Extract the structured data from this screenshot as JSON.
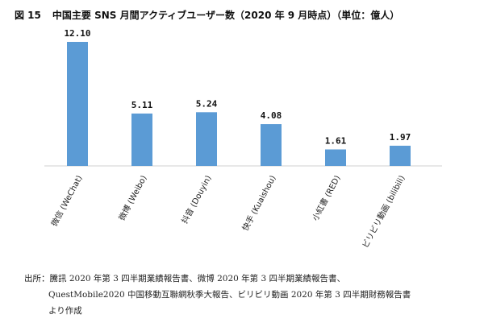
{
  "figure": {
    "number": "図 15",
    "title": "中国主要 SNS 月間アクティブユーザー数（2020 年 9 月時点）（単位：億人）"
  },
  "chart_data": {
    "type": "bar",
    "categories": [
      "微信 (WeChat)",
      "微博 (Weibo)",
      "抖音 (Douyin)",
      "快手 (Kuaishou)",
      "小紅書 (RED)",
      "ビリビリ動画 (bilibili)"
    ],
    "values": [
      12.1,
      5.11,
      5.24,
      4.08,
      1.61,
      1.97
    ],
    "data_labels": [
      "12.10",
      "5.11",
      "5.24",
      "4.08",
      "1.61",
      "1.97"
    ],
    "title": "中国主要 SNS 月間アクティブユーザー数（2020 年 9 月時点）（単位：億人）",
    "xlabel": "",
    "ylabel": "",
    "ylim": [
      0,
      12.1
    ],
    "grid": false,
    "bar_color": "#5b9bd5"
  },
  "source": {
    "line1": "出所：騰訊 2020 年第 3 四半期業績報告書、微博 2020 年第 3 四半期業績報告書、",
    "line2": "QuestMobile2020 中国移動互聯網秋季大報告、ビリビリ動画 2020 年第 3 四半期財務報告書",
    "line3": "より作成"
  }
}
